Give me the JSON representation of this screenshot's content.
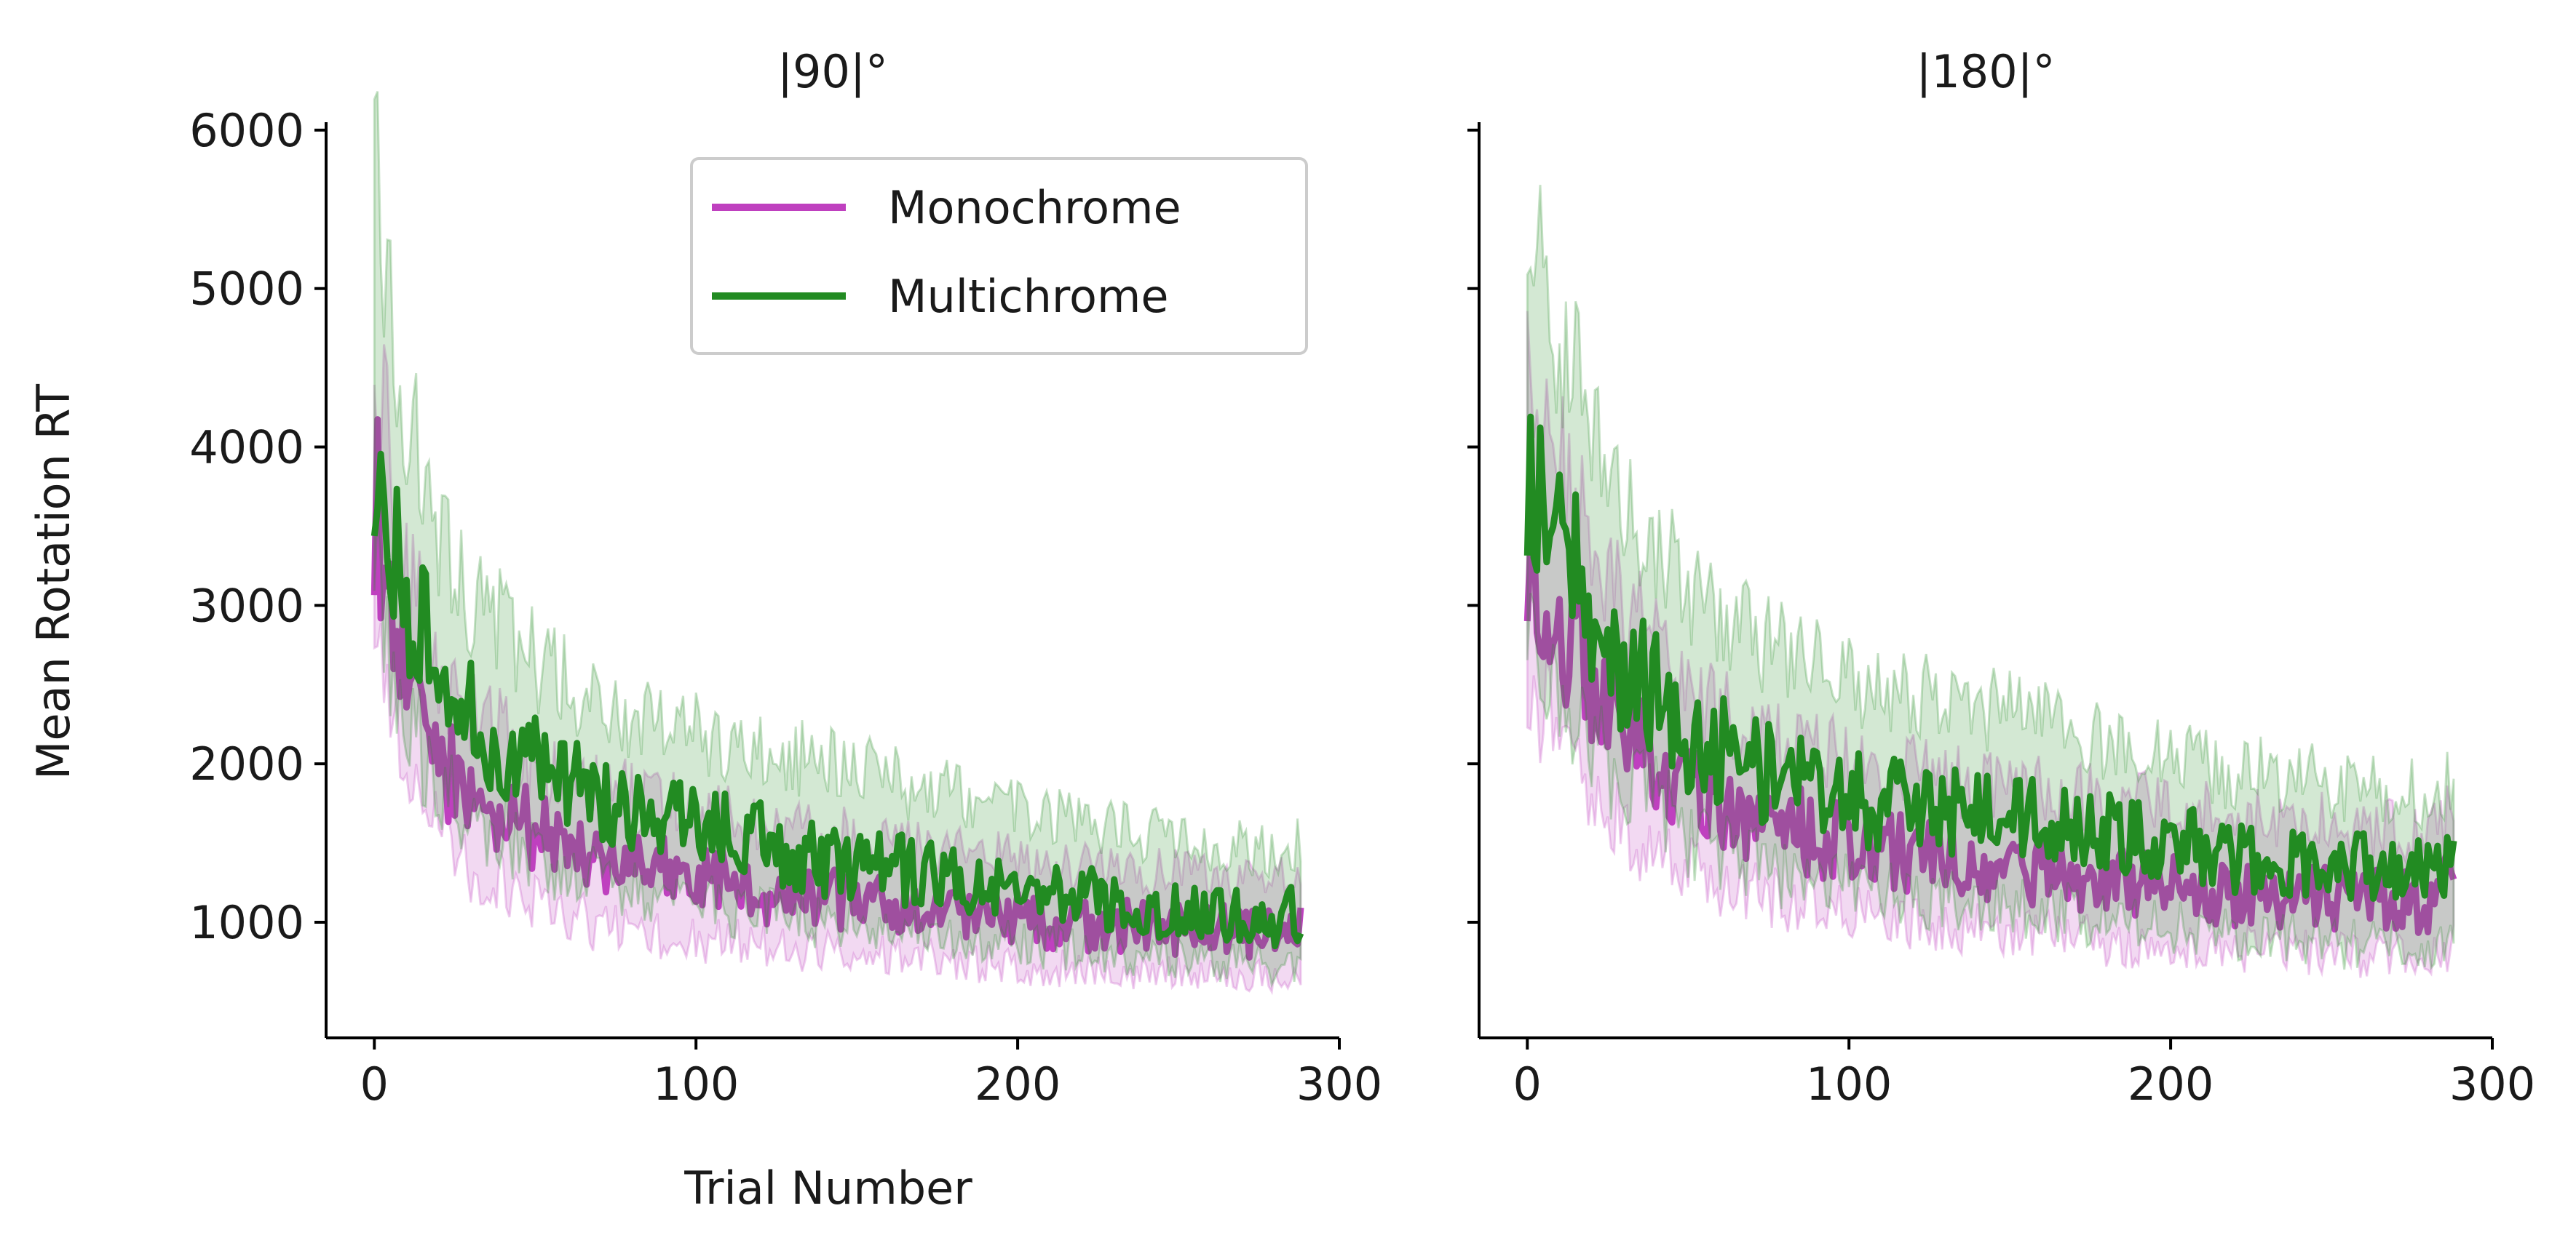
{
  "figure": {
    "ylabel": "Mean Rotation RT",
    "xlabel": "Trial Number",
    "colors": {
      "Monochrome": "#bf40bf",
      "Multichrome": "#228b22",
      "band_overlap": "#808080"
    }
  },
  "chart_data": [
    {
      "type": "line",
      "title": "|90|°",
      "xlabel": "Trial Number",
      "ylabel": "Mean Rotation RT",
      "xlim": [
        -15,
        300
      ],
      "ylim": [
        270,
        6050
      ],
      "xticks": [
        0,
        100,
        200,
        300
      ],
      "yticks": [
        1000,
        2000,
        3000,
        4000,
        5000,
        6000
      ],
      "grid": false,
      "legend": "upper-right",
      "series": [
        {
          "name": "Monochrome",
          "color": "#bf40bf",
          "x": [
            0,
            10,
            20,
            30,
            40,
            50,
            60,
            70,
            80,
            90,
            100,
            110,
            120,
            130,
            140,
            150,
            160,
            170,
            180,
            190,
            200,
            210,
            220,
            230,
            240,
            250,
            260,
            270,
            280,
            288
          ],
          "y": [
            3700,
            2500,
            2050,
            1800,
            1700,
            1550,
            1450,
            1400,
            1350,
            1320,
            1280,
            1250,
            1200,
            1180,
            1150,
            1120,
            1100,
            1080,
            1060,
            1040,
            1020,
            1000,
            990,
            980,
            970,
            960,
            950,
            940,
            920,
            1000
          ],
          "lower": [
            2900,
            1900,
            1550,
            1350,
            1250,
            1100,
            1030,
            980,
            950,
            920,
            900,
            880,
            850,
            830,
            810,
            790,
            780,
            760,
            750,
            740,
            720,
            710,
            700,
            690,
            680,
            670,
            660,
            650,
            640,
            700
          ],
          "upper": [
            4500,
            3200,
            2600,
            2300,
            2200,
            2000,
            1900,
            1850,
            1800,
            1750,
            1700,
            1650,
            1600,
            1580,
            1550,
            1520,
            1500,
            1480,
            1450,
            1430,
            1400,
            1380,
            1360,
            1340,
            1320,
            1300,
            1280,
            1260,
            1240,
            1400
          ]
        },
        {
          "name": "Multichrome",
          "color": "#228b22",
          "x": [
            0,
            10,
            20,
            30,
            40,
            50,
            60,
            70,
            80,
            90,
            100,
            110,
            120,
            130,
            140,
            150,
            160,
            170,
            180,
            190,
            200,
            210,
            220,
            230,
            240,
            250,
            260,
            270,
            280,
            288
          ],
          "y": [
            4150,
            3100,
            2500,
            2250,
            2100,
            1950,
            1850,
            1750,
            1700,
            1650,
            1600,
            1550,
            1500,
            1450,
            1400,
            1380,
            1350,
            1320,
            1280,
            1250,
            1200,
            1180,
            1150,
            1120,
            1100,
            1080,
            1060,
            1050,
            1030,
            1050
          ],
          "lower": [
            3200,
            2300,
            1850,
            1650,
            1550,
            1400,
            1320,
            1250,
            1200,
            1170,
            1130,
            1100,
            1060,
            1030,
            1000,
            980,
            960,
            940,
            910,
            890,
            860,
            840,
            820,
            800,
            780,
            770,
            750,
            740,
            730,
            740
          ],
          "upper": [
            5700,
            4300,
            3400,
            3050,
            2850,
            2650,
            2500,
            2400,
            2300,
            2250,
            2200,
            2150,
            2100,
            2050,
            2000,
            1950,
            1900,
            1850,
            1800,
            1750,
            1700,
            1650,
            1600,
            1580,
            1550,
            1530,
            1500,
            1480,
            1450,
            1500
          ]
        }
      ]
    },
    {
      "type": "line",
      "title": "|180|°",
      "xlim": [
        -15,
        300
      ],
      "ylim": [
        270,
        6050
      ],
      "xticks": [
        0,
        100,
        200,
        300
      ],
      "yticks": [
        1000,
        2000,
        3000,
        4000,
        5000,
        6000
      ],
      "grid": false,
      "series": [
        {
          "name": "Monochrome",
          "color": "#bf40bf",
          "x": [
            0,
            10,
            20,
            30,
            40,
            50,
            60,
            70,
            80,
            90,
            100,
            110,
            120,
            130,
            140,
            150,
            160,
            170,
            180,
            190,
            200,
            210,
            220,
            230,
            240,
            250,
            260,
            270,
            280,
            288
          ],
          "y": [
            3500,
            2900,
            2500,
            2250,
            2000,
            1850,
            1750,
            1650,
            1600,
            1550,
            1500,
            1450,
            1420,
            1400,
            1380,
            1350,
            1320,
            1300,
            1280,
            1250,
            1220,
            1200,
            1180,
            1170,
            1160,
            1150,
            1140,
            1130,
            1120,
            1300
          ],
          "lower": [
            2600,
            2100,
            1800,
            1600,
            1450,
            1350,
            1250,
            1180,
            1130,
            1100,
            1050,
            1020,
            1000,
            980,
            960,
            940,
            920,
            900,
            880,
            860,
            850,
            840,
            830,
            820,
            810,
            800,
            790,
            780,
            770,
            850
          ],
          "upper": [
            4600,
            4000,
            3400,
            3000,
            2700,
            2500,
            2350,
            2250,
            2150,
            2100,
            2050,
            2000,
            1950,
            1900,
            1880,
            1850,
            1820,
            1800,
            1780,
            1750,
            1720,
            1700,
            1680,
            1660,
            1640,
            1620,
            1600,
            1580,
            1560,
            1700
          ]
        },
        {
          "name": "Multichrome",
          "color": "#228b22",
          "x": [
            0,
            10,
            20,
            30,
            40,
            50,
            60,
            70,
            80,
            90,
            100,
            110,
            120,
            130,
            140,
            150,
            160,
            170,
            180,
            190,
            200,
            210,
            220,
            230,
            240,
            250,
            260,
            270,
            280,
            288
          ],
          "y": [
            4000,
            3400,
            2900,
            2650,
            2450,
            2200,
            2100,
            2000,
            1900,
            1850,
            1800,
            1750,
            1720,
            1700,
            1680,
            1650,
            1620,
            1580,
            1550,
            1500,
            1480,
            1450,
            1420,
            1400,
            1380,
            1370,
            1360,
            1350,
            1340,
            1350
          ],
          "lower": [
            3000,
            2500,
            2100,
            1900,
            1750,
            1550,
            1450,
            1380,
            1300,
            1260,
            1220,
            1180,
            1150,
            1130,
            1110,
            1090,
            1070,
            1050,
            1020,
            980,
            960,
            940,
            920,
            900,
            880,
            870,
            860,
            850,
            840,
            900
          ],
          "upper": [
            5600,
            4700,
            4100,
            3700,
            3400,
            3100,
            2900,
            2800,
            2700,
            2600,
            2550,
            2500,
            2450,
            2400,
            2350,
            2300,
            2250,
            2200,
            2150,
            2100,
            2050,
            2000,
            1950,
            1920,
            1900,
            1880,
            1860,
            1840,
            1820,
            1900
          ]
        }
      ]
    }
  ]
}
